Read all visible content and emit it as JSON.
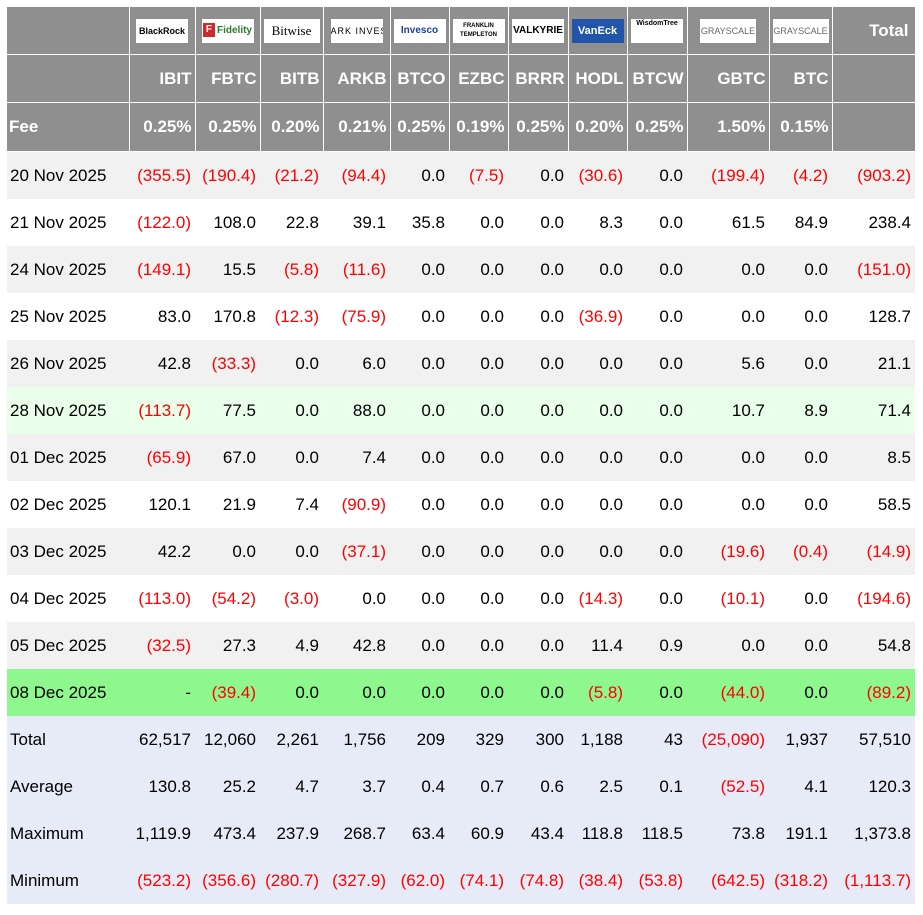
{
  "colors": {
    "header_bg": "#8f8f8f",
    "negative": "#ff0000",
    "highlight_row": "#8ef88e",
    "light_green_row": "#e9ffe9",
    "summary_bg": "#e6ebf7"
  },
  "logos": [
    {
      "label": "BlackRock",
      "icon": "blackrock-logo"
    },
    {
      "label": "Fidelity",
      "icon": "fidelity-logo"
    },
    {
      "label": "Bitwise",
      "icon": "bitwise-logo"
    },
    {
      "label": "ARK INVEST",
      "icon": "ark-invest-logo"
    },
    {
      "label": "Invesco",
      "icon": "invesco-logo"
    },
    {
      "label": "FRANKLIN TEMPLETON",
      "icon": "franklin-templeton-logo"
    },
    {
      "label": "VALKYRIE",
      "icon": "valkyrie-logo"
    },
    {
      "label": "VanEck",
      "icon": "vaneck-logo"
    },
    {
      "label": "WisdomTree",
      "icon": "wisdomtree-logo"
    },
    {
      "label": "GRAYSCALE",
      "icon": "grayscale-logo"
    },
    {
      "label": "GRAYSCALE",
      "icon": "grayscale-logo"
    }
  ],
  "total_header": "Total",
  "tickers": [
    "IBIT",
    "FBTC",
    "BITB",
    "ARKB",
    "BTCO",
    "EZBC",
    "BRRR",
    "HODL",
    "BTCW",
    "GBTC",
    "BTC"
  ],
  "fee_label": "Fee",
  "fees": [
    "0.25%",
    "0.25%",
    "0.20%",
    "0.21%",
    "0.25%",
    "0.19%",
    "0.25%",
    "0.20%",
    "0.25%",
    "1.50%",
    "0.15%"
  ],
  "rows": [
    {
      "date": "20 Nov 2025",
      "values": [
        "(355.5)",
        "(190.4)",
        "(21.2)",
        "(94.4)",
        "0.0",
        "(7.5)",
        "0.0",
        "(30.6)",
        "0.0",
        "(199.4)",
        "(4.2)",
        "(903.2)"
      ]
    },
    {
      "date": "21 Nov 2025",
      "values": [
        "(122.0)",
        "108.0",
        "22.8",
        "39.1",
        "35.8",
        "0.0",
        "0.0",
        "8.3",
        "0.0",
        "61.5",
        "84.9",
        "238.4"
      ]
    },
    {
      "date": "24 Nov 2025",
      "values": [
        "(149.1)",
        "15.5",
        "(5.8)",
        "(11.6)",
        "0.0",
        "0.0",
        "0.0",
        "0.0",
        "0.0",
        "0.0",
        "0.0",
        "(151.0)"
      ]
    },
    {
      "date": "25 Nov 2025",
      "values": [
        "83.0",
        "170.8",
        "(12.3)",
        "(75.9)",
        "0.0",
        "0.0",
        "0.0",
        "(36.9)",
        "0.0",
        "0.0",
        "0.0",
        "128.7"
      ]
    },
    {
      "date": "26 Nov 2025",
      "values": [
        "42.8",
        "(33.3)",
        "0.0",
        "6.0",
        "0.0",
        "0.0",
        "0.0",
        "0.0",
        "0.0",
        "5.6",
        "0.0",
        "21.1"
      ]
    },
    {
      "date": "28 Nov 2025",
      "values": [
        "(113.7)",
        "77.5",
        "0.0",
        "88.0",
        "0.0",
        "0.0",
        "0.0",
        "0.0",
        "0.0",
        "10.7",
        "8.9",
        "71.4"
      ]
    },
    {
      "date": "01 Dec 2025",
      "values": [
        "(65.9)",
        "67.0",
        "0.0",
        "7.4",
        "0.0",
        "0.0",
        "0.0",
        "0.0",
        "0.0",
        "0.0",
        "0.0",
        "8.5"
      ]
    },
    {
      "date": "02 Dec 2025",
      "values": [
        "120.1",
        "21.9",
        "7.4",
        "(90.9)",
        "0.0",
        "0.0",
        "0.0",
        "0.0",
        "0.0",
        "0.0",
        "0.0",
        "58.5"
      ]
    },
    {
      "date": "03 Dec 2025",
      "values": [
        "42.2",
        "0.0",
        "0.0",
        "(37.1)",
        "0.0",
        "0.0",
        "0.0",
        "0.0",
        "0.0",
        "(19.6)",
        "(0.4)",
        "(14.9)"
      ]
    },
    {
      "date": "04 Dec 2025",
      "values": [
        "(113.0)",
        "(54.2)",
        "(3.0)",
        "0.0",
        "0.0",
        "0.0",
        "0.0",
        "(14.3)",
        "0.0",
        "(10.1)",
        "0.0",
        "(194.6)"
      ]
    },
    {
      "date": "05 Dec 2025",
      "values": [
        "(32.5)",
        "27.3",
        "4.9",
        "42.8",
        "0.0",
        "0.0",
        "0.0",
        "11.4",
        "0.9",
        "0.0",
        "0.0",
        "54.8"
      ]
    },
    {
      "date": "08 Dec 2025",
      "values": [
        "-",
        "(39.4)",
        "0.0",
        "0.0",
        "0.0",
        "0.0",
        "0.0",
        "(5.8)",
        "0.0",
        "(44.0)",
        "0.0",
        "(89.2)"
      ]
    }
  ],
  "summary": [
    {
      "label": "Total",
      "values": [
        "62,517",
        "12,060",
        "2,261",
        "1,756",
        "209",
        "329",
        "300",
        "1,188",
        "43",
        "(25,090)",
        "1,937",
        "57,510"
      ]
    },
    {
      "label": "Average",
      "values": [
        "130.8",
        "25.2",
        "4.7",
        "3.7",
        "0.4",
        "0.7",
        "0.6",
        "2.5",
        "0.1",
        "(52.5)",
        "4.1",
        "120.3"
      ]
    },
    {
      "label": "Maximum",
      "values": [
        "1,119.9",
        "473.4",
        "237.9",
        "268.7",
        "63.4",
        "60.9",
        "43.4",
        "118.8",
        "118.5",
        "73.8",
        "191.1",
        "1,373.8"
      ]
    },
    {
      "label": "Minimum",
      "values": [
        "(523.2)",
        "(356.6)",
        "(280.7)",
        "(327.9)",
        "(62.0)",
        "(74.1)",
        "(74.8)",
        "(38.4)",
        "(53.8)",
        "(642.5)",
        "(318.2)",
        "(1,113.7)"
      ]
    }
  ]
}
